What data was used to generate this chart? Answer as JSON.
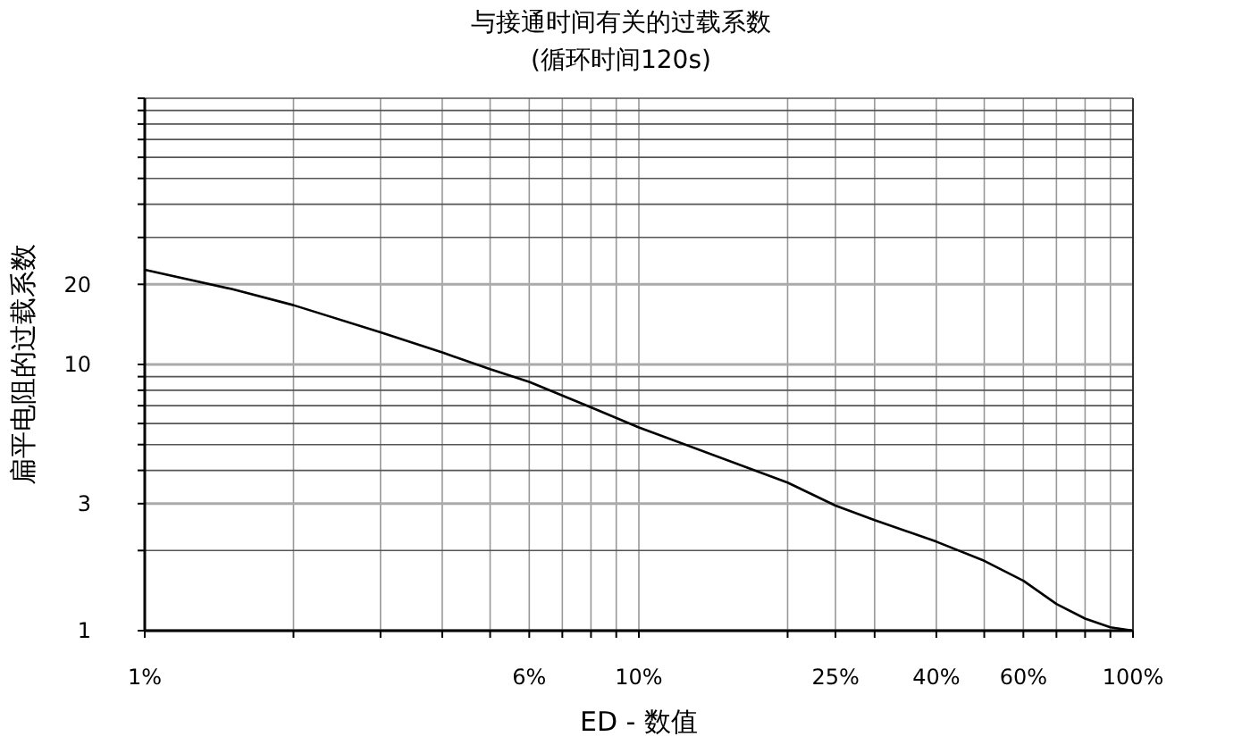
{
  "chart_data": {
    "type": "line",
    "title": "与接通时间有关的过载系数",
    "subtitle": "(循环时间120s)",
    "xlabel": "ED - 数值",
    "ylabel": "扁平电阻的过载系数",
    "log": "xy",
    "grid": true,
    "marker": "none",
    "line_style": "solid",
    "xlim": [
      1,
      100
    ],
    "xticks": [
      {
        "value": 1,
        "label": "1%"
      },
      {
        "value": 2,
        "label": null
      },
      {
        "value": 3,
        "label": null
      },
      {
        "value": 4,
        "label": null
      },
      {
        "value": 5,
        "label": null
      },
      {
        "value": 6,
        "label": "6%"
      },
      {
        "value": 7,
        "label": null
      },
      {
        "value": 8,
        "label": null
      },
      {
        "value": 9,
        "label": null
      },
      {
        "value": 10,
        "label": "10%"
      },
      {
        "value": 20,
        "label": null
      },
      {
        "value": 25,
        "label": "25%"
      },
      {
        "value": 30,
        "label": null
      },
      {
        "value": 40,
        "label": "40%"
      },
      {
        "value": 50,
        "label": null
      },
      {
        "value": 60,
        "label": "60%"
      },
      {
        "value": 70,
        "label": null
      },
      {
        "value": 80,
        "label": null
      },
      {
        "value": 90,
        "label": null
      },
      {
        "value": 100,
        "label": "100%"
      }
    ],
    "ylim": [
      1,
      100
    ],
    "yticks": [
      1,
      {
        "value": 2,
        "label": null
      },
      3,
      {
        "value": 4,
        "label": null
      },
      {
        "value": 5,
        "label": null
      },
      {
        "value": 6,
        "label": null
      },
      {
        "value": 7,
        "label": null
      },
      {
        "value": 8,
        "label": null
      },
      {
        "value": 9,
        "label": null
      },
      10,
      20,
      {
        "value": 30,
        "label": null
      },
      {
        "value": 40,
        "label": null
      },
      {
        "value": 50,
        "label": null
      },
      {
        "value": 60,
        "label": null
      },
      {
        "value": 70,
        "label": null
      },
      {
        "value": 80,
        "label": null
      },
      {
        "value": 90,
        "label": null
      },
      {
        "value": 100,
        "label": null
      }
    ],
    "x": [
      1,
      1.5,
      2,
      3,
      4,
      5,
      6,
      8,
      10,
      20,
      25,
      30,
      40,
      50,
      60,
      70,
      80,
      90,
      100
    ],
    "series": [
      {
        "color": "#000000",
        "values": [
          22.7,
          19.2,
          16.7,
          13.2,
          11.1,
          9.6,
          8.6,
          6.9,
          5.8,
          3.6,
          2.95,
          2.6,
          2.16,
          1.83,
          1.54,
          1.26,
          1.11,
          1.03,
          1.0
        ]
      }
    ]
  }
}
